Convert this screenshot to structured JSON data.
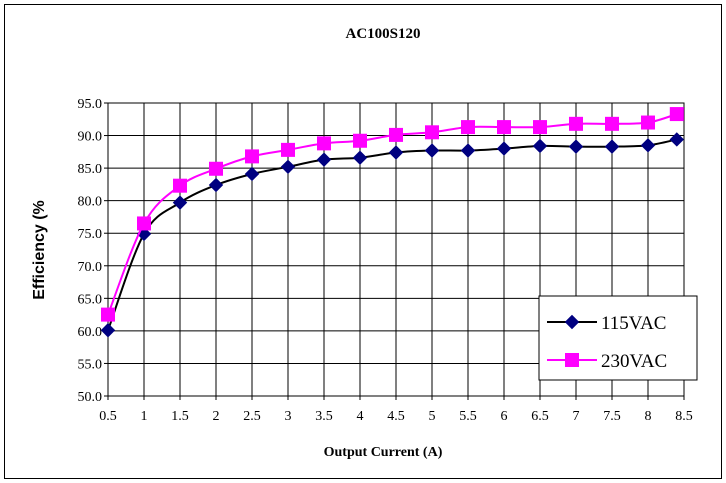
{
  "chart_data": {
    "type": "line",
    "title": "AC100S120",
    "xlabel": "Output Current (A)",
    "ylabel": "Efficiency (%",
    "x": [
      0.5,
      1,
      1.5,
      2,
      2.5,
      3,
      3.5,
      4,
      4.5,
      5,
      5.5,
      6,
      6.5,
      7,
      7.5,
      8,
      8.4
    ],
    "x_ticks": [
      "0.5",
      "1",
      "1.5",
      "2",
      "2.5",
      "3",
      "3.5",
      "4",
      "4.5",
      "5",
      "5.5",
      "6",
      "6.5",
      "7",
      "7.5",
      "8",
      "8.5"
    ],
    "y_ticks": [
      "50.0",
      "55.0",
      "60.0",
      "65.0",
      "70.0",
      "75.0",
      "80.0",
      "85.0",
      "90.0",
      "95.0"
    ],
    "xlim": [
      0.5,
      8.5
    ],
    "ylim": [
      50,
      95
    ],
    "grid": true,
    "legend_position": "bottom-right",
    "series": [
      {
        "name": "115VAC",
        "color": "#000080",
        "marker": "diamond",
        "values": [
          60.1,
          74.9,
          79.7,
          82.4,
          84.1,
          85.2,
          86.3,
          86.6,
          87.4,
          87.7,
          87.7,
          88.0,
          88.4,
          88.3,
          88.3,
          88.5,
          89.4
        ]
      },
      {
        "name": "230VAC",
        "color": "#ff00ff",
        "marker": "square",
        "values": [
          62.5,
          76.5,
          82.3,
          84.9,
          86.8,
          87.8,
          88.8,
          89.2,
          90.1,
          90.5,
          91.3,
          91.3,
          91.3,
          91.8,
          91.8,
          92.0,
          93.3
        ]
      }
    ]
  }
}
